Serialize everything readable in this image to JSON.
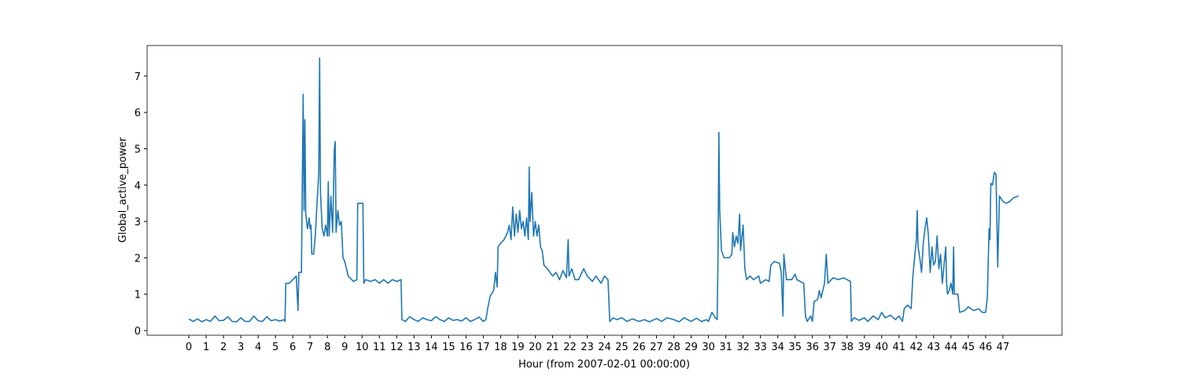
{
  "chart_data": {
    "type": "line",
    "x_label": "Hour (from 2007-02-01 00:00:00)",
    "y_label": "Global_active_power",
    "x": [
      0,
      0.25,
      0.5,
      0.75,
      1,
      1.25,
      1.5,
      1.75,
      2,
      2.25,
      2.5,
      2.75,
      3,
      3.25,
      3.5,
      3.75,
      4,
      4.25,
      4.5,
      4.75,
      5,
      5.25,
      5.5,
      5.55,
      5.6,
      5.8,
      6,
      6.2,
      6.3,
      6.35,
      6.5,
      6.6,
      6.65,
      6.7,
      6.75,
      6.85,
      6.95,
      7,
      7.05,
      7.1,
      7.2,
      7.3,
      7.4,
      7.5,
      7.55,
      7.6,
      7.7,
      7.8,
      7.9,
      8,
      8.05,
      8.1,
      8.2,
      8.3,
      8.4,
      8.45,
      8.5,
      8.6,
      8.7,
      8.8,
      8.9,
      9,
      9.1,
      9.2,
      9.3,
      9.5,
      9.7,
      9.75,
      9.9,
      10.05,
      10.1,
      10.2,
      10.5,
      10.75,
      11,
      11.25,
      11.5,
      11.75,
      12,
      12.25,
      12.3,
      12.5,
      12.75,
      13,
      13.25,
      13.5,
      13.75,
      14,
      14.25,
      14.5,
      14.75,
      15,
      15.25,
      15.5,
      15.75,
      16,
      16.25,
      16.5,
      16.75,
      17,
      17.15,
      17.25,
      17.4,
      17.6,
      17.7,
      17.8,
      17.85,
      18,
      18.2,
      18.4,
      18.5,
      18.6,
      18.7,
      18.8,
      18.9,
      19,
      19.1,
      19.2,
      19.3,
      19.4,
      19.5,
      19.6,
      19.65,
      19.7,
      19.8,
      19.9,
      20,
      20.1,
      20.2,
      20.3,
      20.4,
      20.5,
      20.7,
      21,
      21.2,
      21.4,
      21.6,
      21.8,
      21.9,
      21.95,
      22.1,
      22.3,
      22.5,
      22.8,
      23,
      23.3,
      23.5,
      23.8,
      24,
      24.2,
      24.3,
      24.5,
      24.7,
      25,
      25.3,
      25.6,
      26,
      26.3,
      26.6,
      27,
      27.3,
      27.6,
      28,
      28.3,
      28.6,
      29,
      29.3,
      29.6,
      29.9,
      30,
      30.2,
      30.4,
      30.5,
      30.55,
      30.6,
      30.65,
      30.75,
      30.9,
      31.2,
      31.35,
      31.4,
      31.5,
      31.6,
      31.7,
      31.8,
      31.85,
      32,
      32.1,
      32.2,
      32.4,
      32.6,
      32.9,
      33,
      33.3,
      33.5,
      33.6,
      33.8,
      34.1,
      34.2,
      34.3,
      34.35,
      34.5,
      34.8,
      35,
      35.1,
      35.3,
      35.5,
      35.6,
      35.7,
      35.9,
      36,
      36.1,
      36.3,
      36.4,
      36.5,
      36.7,
      36.8,
      36.9,
      37,
      37.2,
      37.5,
      37.8,
      38,
      38.2,
      38.25,
      38.4,
      38.7,
      39,
      39.2,
      39.5,
      39.8,
      40,
      40.2,
      40.5,
      40.8,
      41,
      41.2,
      41.3,
      41.5,
      41.7,
      41.8,
      41.9,
      42,
      42.05,
      42.1,
      42.2,
      42.3,
      42.4,
      42.5,
      42.6,
      42.7,
      42.8,
      42.9,
      43,
      43.1,
      43.2,
      43.3,
      43.4,
      43.5,
      43.6,
      43.7,
      43.75,
      43.8,
      43.9,
      44,
      44.1,
      44.15,
      44.2,
      44.4,
      44.5,
      44.8,
      45,
      45.3,
      45.6,
      45.8,
      46,
      46.1,
      46.2,
      46.25,
      46.3,
      46.4,
      46.5,
      46.6,
      46.7,
      46.8,
      47,
      47.2,
      47.4,
      47.6,
      47.9
    ],
    "series": [
      {
        "color": "#1f77b4",
        "values": [
          0.32,
          0.25,
          0.32,
          0.24,
          0.3,
          0.25,
          0.4,
          0.27,
          0.28,
          0.38,
          0.25,
          0.24,
          0.35,
          0.25,
          0.25,
          0.4,
          0.27,
          0.25,
          0.38,
          0.27,
          0.3,
          0.26,
          0.3,
          0.25,
          1.3,
          1.3,
          1.4,
          1.5,
          0.55,
          1.6,
          1.6,
          6.5,
          3.3,
          5.8,
          3.2,
          2.8,
          3.1,
          2.8,
          2.9,
          2.1,
          2.1,
          2.6,
          3.5,
          4.3,
          7.5,
          3.8,
          2.8,
          2.6,
          2.9,
          2.6,
          4.1,
          2.6,
          3.7,
          2.7,
          5.0,
          5.2,
          2.7,
          3.3,
          2.9,
          3.0,
          2.0,
          1.9,
          1.7,
          1.5,
          1.45,
          1.35,
          1.4,
          3.5,
          3.5,
          3.5,
          1.3,
          1.4,
          1.35,
          1.4,
          1.3,
          1.4,
          1.3,
          1.4,
          1.35,
          1.4,
          0.3,
          0.25,
          0.38,
          0.3,
          0.25,
          0.35,
          0.3,
          0.27,
          0.38,
          0.3,
          0.25,
          0.35,
          0.28,
          0.3,
          0.26,
          0.35,
          0.25,
          0.3,
          0.37,
          0.25,
          0.3,
          0.6,
          0.95,
          1.1,
          1.6,
          1.2,
          2.3,
          2.4,
          2.5,
          2.7,
          2.9,
          2.5,
          3.4,
          2.6,
          3.2,
          2.7,
          3.3,
          2.8,
          3.0,
          2.6,
          3.1,
          2.5,
          4.5,
          3.0,
          3.8,
          2.6,
          3.0,
          2.6,
          2.9,
          2.3,
          2.2,
          1.8,
          1.7,
          1.5,
          1.6,
          1.4,
          1.65,
          1.45,
          2.5,
          1.5,
          1.7,
          1.4,
          1.4,
          1.7,
          1.5,
          1.35,
          1.5,
          1.3,
          1.5,
          1.4,
          0.25,
          0.35,
          0.3,
          0.35,
          0.25,
          0.32,
          0.25,
          0.3,
          0.24,
          0.33,
          0.25,
          0.35,
          0.3,
          0.24,
          0.35,
          0.25,
          0.34,
          0.25,
          0.3,
          0.25,
          0.5,
          0.35,
          0.3,
          2.0,
          5.45,
          3.3,
          2.2,
          2.0,
          2.0,
          2.1,
          2.7,
          2.3,
          2.6,
          2.4,
          3.2,
          2.2,
          2.9,
          1.7,
          1.4,
          1.5,
          1.4,
          1.5,
          1.3,
          1.4,
          1.35,
          1.8,
          1.9,
          1.85,
          1.6,
          0.4,
          2.1,
          1.4,
          1.4,
          1.55,
          1.4,
          1.35,
          1.3,
          0.4,
          0.25,
          0.4,
          0.25,
          0.8,
          0.85,
          1.1,
          0.9,
          1.3,
          2.1,
          1.3,
          1.35,
          1.45,
          1.4,
          1.45,
          1.4,
          1.35,
          0.25,
          0.35,
          0.28,
          0.35,
          0.25,
          0.4,
          0.3,
          0.5,
          0.35,
          0.42,
          0.3,
          0.4,
          0.25,
          0.6,
          0.7,
          0.6,
          1.5,
          2.0,
          2.5,
          3.3,
          2.3,
          2.0,
          1.6,
          2.4,
          2.8,
          3.1,
          2.6,
          1.6,
          2.3,
          1.8,
          1.9,
          2.6,
          1.7,
          2.1,
          1.3,
          1.8,
          2.3,
          1.3,
          1.0,
          1.1,
          1.3,
          1.0,
          2.3,
          1.0,
          1.0,
          0.5,
          0.55,
          0.65,
          0.55,
          0.6,
          0.5,
          0.5,
          0.9,
          2.8,
          2.5,
          4.05,
          4.0,
          4.35,
          4.3,
          1.75,
          3.7,
          3.55,
          3.5,
          3.55,
          3.65,
          3.7
        ]
      }
    ],
    "xlim": [
      -2.41,
      50.41
    ],
    "ylim": [
      -0.13,
      7.84
    ],
    "xticks": [
      0,
      1,
      2,
      3,
      4,
      5,
      6,
      7,
      8,
      9,
      10,
      11,
      12,
      13,
      14,
      15,
      16,
      17,
      18,
      19,
      20,
      21,
      22,
      23,
      24,
      25,
      26,
      27,
      28,
      29,
      30,
      31,
      32,
      33,
      34,
      35,
      36,
      37,
      38,
      39,
      40,
      41,
      42,
      43,
      44,
      45,
      46,
      47
    ],
    "yticks": [
      0,
      1,
      2,
      3,
      4,
      5,
      6,
      7
    ],
    "grid": false
  }
}
